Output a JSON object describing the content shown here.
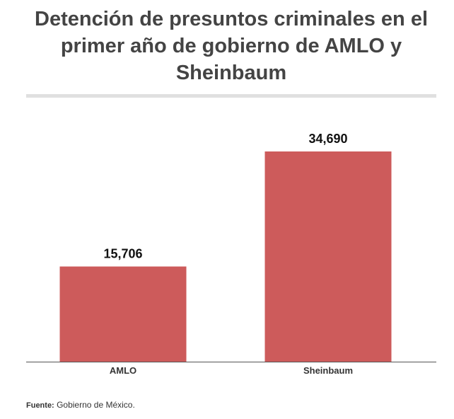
{
  "chart_data": {
    "type": "bar",
    "title": "Detención de presuntos criminales en el primer año de gobierno de AMLO y Sheinbaum",
    "categories": [
      "AMLO",
      "Sheinbaum"
    ],
    "values": [
      15706,
      34690
    ],
    "value_labels": [
      "15,706",
      "34,690"
    ],
    "color": "#cd5b5b",
    "source_label": "Fuente:",
    "source": "Gobierno de México."
  }
}
